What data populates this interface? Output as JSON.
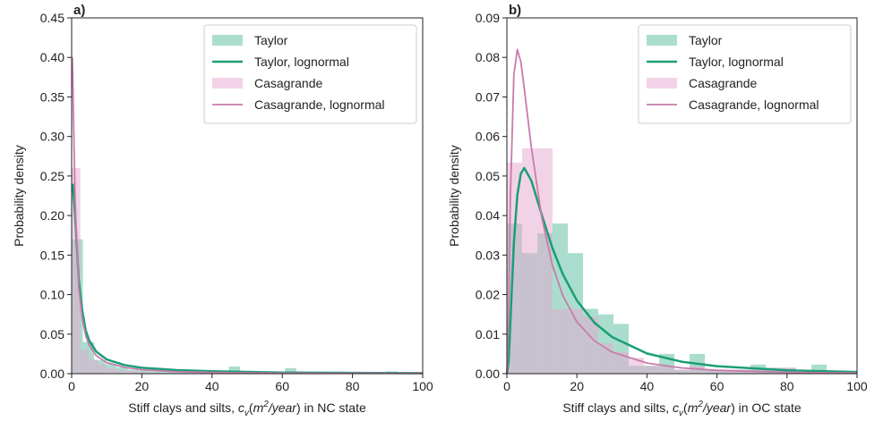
{
  "chart_data": [
    {
      "type": "histogram+line",
      "panel_label": "a)",
      "xlabel_parts": [
        "Stiff clays and silts, ",
        "c",
        "v",
        "(",
        "m",
        "2",
        "/year",
        ")",
        " in NC state"
      ],
      "ylabel": "Probability density",
      "xlim": [
        0,
        100
      ],
      "ylim": [
        0,
        0.45
      ],
      "xticks": [
        "0",
        "20",
        "40",
        "60",
        "80",
        "100"
      ],
      "yticks": [
        "0.00",
        "0.05",
        "0.10",
        "0.15",
        "0.20",
        "0.25",
        "0.30",
        "0.35",
        "0.40",
        "0.45"
      ],
      "legend_position": "top-right",
      "legend": [
        "Taylor",
        "Taylor, lognormal",
        "Casagrande",
        "Casagrande, lognormal"
      ],
      "histograms": [
        {
          "name": "Taylor",
          "color": "#66c2a5",
          "bin_start": 0,
          "bin_width": 3.2,
          "values": [
            0.17,
            0.04,
            0.017,
            0.012,
            0.008,
            0.005,
            0.004,
            0.003,
            0.003,
            0.002,
            0.002,
            0.002,
            0.001,
            0.001,
            0.009,
            0.001,
            0.002,
            0.001,
            0.001,
            0.007,
            0.001,
            0.001,
            0,
            0,
            0,
            0,
            0,
            0,
            0.003
          ]
        },
        {
          "name": "Casagrande",
          "color": "#e7a8cf",
          "bin_start": 0,
          "bin_width": 2.5,
          "values": [
            0.26,
            0.03,
            0.018,
            0.012,
            0.007,
            0.005,
            0.004,
            0.003,
            0.002,
            0.002,
            0.001,
            0.001
          ]
        }
      ],
      "lines": [
        {
          "name": "Taylor, lognormal",
          "color": "#1b9e77",
          "x": [
            0.3,
            1,
            2,
            3,
            4,
            5,
            7,
            10,
            15,
            20,
            30,
            40,
            60,
            80,
            100
          ],
          "y": [
            0.24,
            0.2,
            0.12,
            0.08,
            0.055,
            0.042,
            0.028,
            0.018,
            0.011,
            0.0075,
            0.0045,
            0.003,
            0.0015,
            0.001,
            0.0007
          ]
        },
        {
          "name": "Casagrande, lognormal",
          "color": "#c77cac",
          "x": [
            0.2,
            0.5,
            1,
            2,
            3,
            4,
            5,
            7,
            10,
            15,
            20,
            30,
            40,
            60,
            100
          ],
          "y": [
            0.4,
            0.33,
            0.22,
            0.11,
            0.07,
            0.048,
            0.036,
            0.023,
            0.014,
            0.008,
            0.005,
            0.0025,
            0.0015,
            0.0007,
            0.0003
          ]
        }
      ]
    },
    {
      "type": "histogram+line",
      "panel_label": "b)",
      "xlabel_parts": [
        "Stiff clays and silts, ",
        "c",
        "v",
        "(",
        "m",
        "2",
        "/year",
        ")",
        " in OC state"
      ],
      "ylabel": "Probability density",
      "xlim": [
        0,
        100
      ],
      "ylim": [
        0,
        0.09
      ],
      "xticks": [
        "0",
        "20",
        "40",
        "60",
        "80",
        "100"
      ],
      "yticks": [
        "0.00",
        "0.01",
        "0.02",
        "0.03",
        "0.04",
        "0.05",
        "0.06",
        "0.07",
        "0.08",
        "0.09"
      ],
      "legend_position": "top-right",
      "legend": [
        "Taylor",
        "Taylor, lognormal",
        "Casagrande",
        "Casagrande, lognormal"
      ],
      "histograms": [
        {
          "name": "Taylor",
          "color": "#66c2a5",
          "bin_start": 0,
          "bin_width": 4.35,
          "values": [
            0.038,
            0.0305,
            0.0355,
            0.038,
            0.0305,
            0.0164,
            0.015,
            0.0126,
            0.002,
            0.002,
            0.005,
            0.001,
            0.005,
            0.001,
            0.001,
            0.001,
            0.0023,
            0.0015,
            0.0015,
            0,
            0.0023
          ]
        },
        {
          "name": "Casagrande",
          "color": "#e7a8cf",
          "bin_start": 0,
          "bin_width": 4.35,
          "values": [
            0.0534,
            0.057,
            0.057,
            0.0164,
            0.0164,
            0.0145,
            0.0077,
            0.0055,
            0.004,
            0.002,
            0.002,
            0.001,
            0.002,
            0.001,
            0.001,
            0.001,
            0.001,
            0.0015,
            0.0015,
            0,
            0
          ]
        }
      ],
      "lines": [
        {
          "name": "Taylor, lognormal",
          "color": "#1b9e77",
          "x": [
            0,
            0.5,
            1,
            2,
            3,
            4,
            5,
            7,
            10,
            13,
            16,
            20,
            25,
            30,
            40,
            50,
            60,
            80,
            100
          ],
          "y": [
            0,
            0.003,
            0.0129,
            0.0331,
            0.0452,
            0.0506,
            0.052,
            0.0488,
            0.0401,
            0.0318,
            0.0251,
            0.0185,
            0.0129,
            0.0093,
            0.0051,
            0.003,
            0.0019,
            0.00084,
            0.00042
          ]
        },
        {
          "name": "Casagrande, lognormal",
          "color": "#c77cac",
          "x": [
            0,
            0.5,
            1,
            2,
            3,
            4,
            5,
            7,
            10,
            13,
            16,
            20,
            25,
            30,
            40,
            50,
            60,
            80,
            100
          ],
          "y": [
            0,
            0.016,
            0.0445,
            0.0756,
            0.082,
            0.0789,
            0.072,
            0.0571,
            0.0393,
            0.0275,
            0.0197,
            0.0131,
            0.0083,
            0.0055,
            0.0027,
            0.00145,
            0.00085,
            0.00034,
            0.00015
          ]
        }
      ]
    }
  ]
}
